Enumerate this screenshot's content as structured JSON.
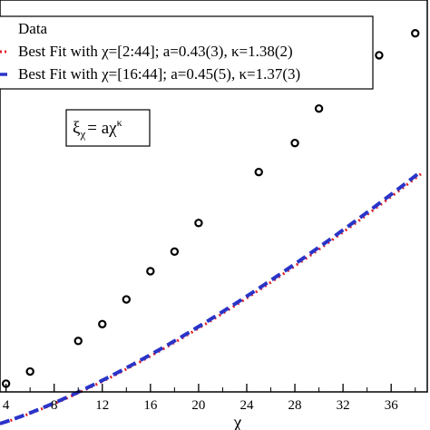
{
  "chart_data": {
    "type": "scatter",
    "title": "",
    "xlabel": "χ",
    "ylabel": "",
    "xlim": [
      3.5,
      39
    ],
    "ylim": [
      0,
      100
    ],
    "x_ticks": [
      4,
      8,
      12,
      16,
      20,
      24,
      28,
      32,
      36
    ],
    "grid": false,
    "legend_position": "top-left",
    "series": [
      {
        "name": "Data",
        "kind": "points",
        "marker": "open-circle",
        "color": "#000000",
        "x": [
          4,
          6,
          10,
          12,
          14,
          16,
          18,
          20,
          25,
          28,
          30,
          35,
          38
        ],
        "y": [
          2.1,
          5.2,
          13.0,
          17.3,
          23.6,
          30.8,
          35.8,
          43.1,
          56.1,
          63.5,
          72.3,
          85.9,
          91.5
        ]
      },
      {
        "name": "Best Fit with χ=[2:44]; a=0.43(3), κ=1.38(2)",
        "kind": "fit",
        "line_style": "dotted",
        "color": "#e0202a",
        "a": 0.43,
        "kappa": 1.38
      },
      {
        "name": "Best Fit with χ=[16:44]; a=0.45(5), κ=1.37(3)",
        "kind": "fit",
        "line_style": "dashed",
        "color": "#2a34c8",
        "a": 0.45,
        "kappa": 1.37
      }
    ],
    "annotation": {
      "base": "ξ",
      "base_sub": "χ",
      "rhs": "= aχ",
      "rhs_sup": "κ"
    }
  }
}
